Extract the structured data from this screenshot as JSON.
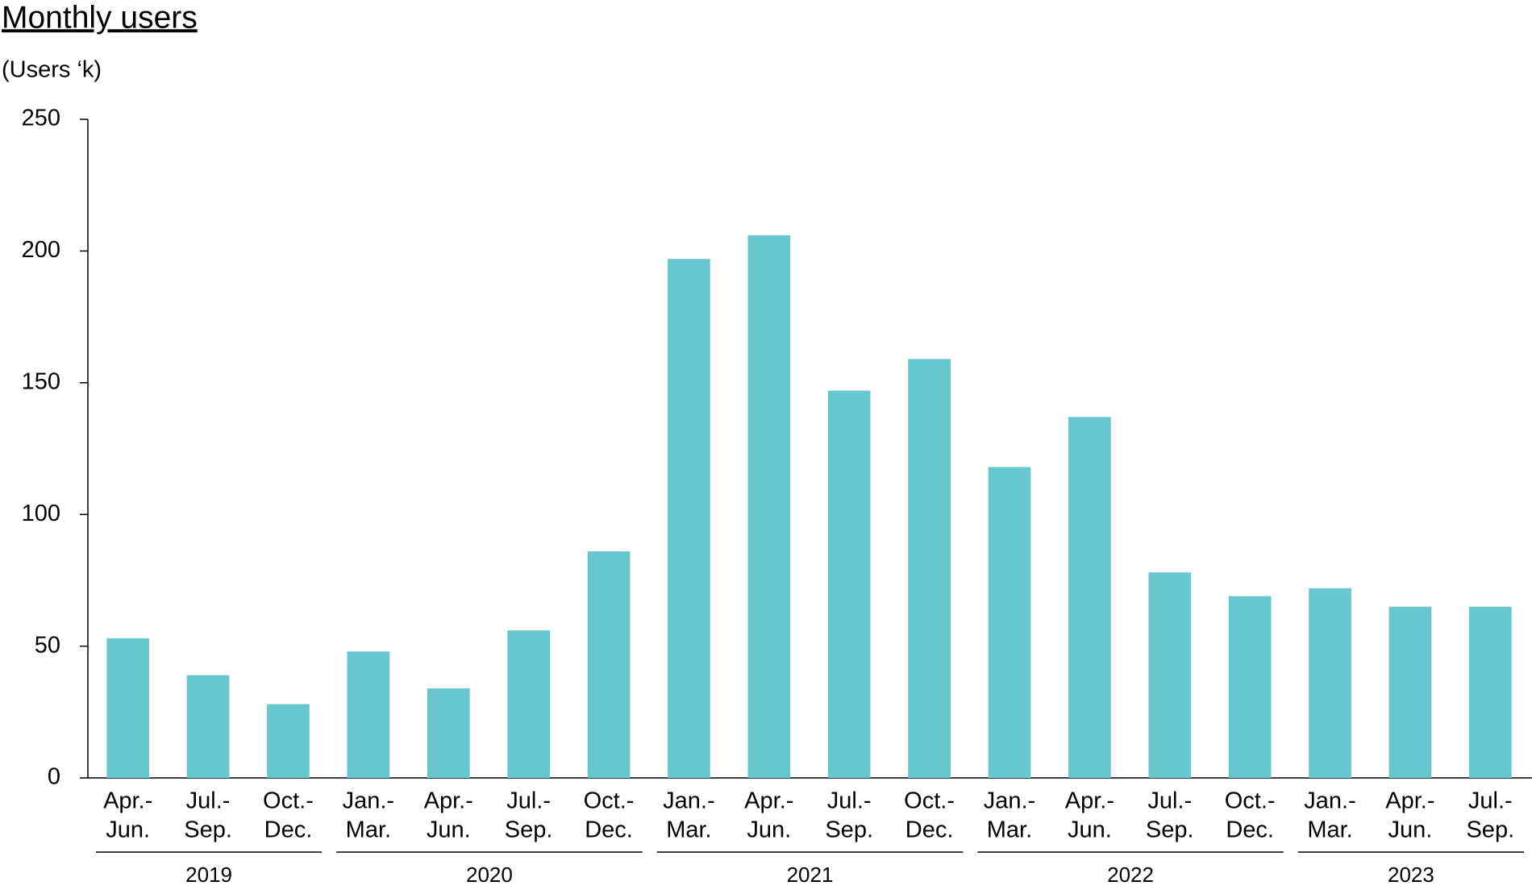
{
  "chart_data": {
    "type": "bar",
    "title": "Monthly users",
    "y_label": "(Users ‘k)",
    "categories": [
      {
        "period": [
          "Apr.-",
          "Jun."
        ],
        "year": "2019"
      },
      {
        "period": [
          "Jul.-",
          "Sep."
        ],
        "year": "2019"
      },
      {
        "period": [
          "Oct.-",
          "Dec."
        ],
        "year": "2019"
      },
      {
        "period": [
          "Jan.-",
          "Mar."
        ],
        "year": "2020"
      },
      {
        "period": [
          "Apr.-",
          "Jun."
        ],
        "year": "2020"
      },
      {
        "period": [
          "Jul.-",
          "Sep."
        ],
        "year": "2020"
      },
      {
        "period": [
          "Oct.-",
          "Dec."
        ],
        "year": "2020"
      },
      {
        "period": [
          "Jan.-",
          "Mar."
        ],
        "year": "2021"
      },
      {
        "period": [
          "Apr.-",
          "Jun."
        ],
        "year": "2021"
      },
      {
        "period": [
          "Jul.-",
          "Sep."
        ],
        "year": "2021"
      },
      {
        "period": [
          "Oct.-",
          "Dec."
        ],
        "year": "2021"
      },
      {
        "period": [
          "Jan.-",
          "Mar."
        ],
        "year": "2022"
      },
      {
        "period": [
          "Apr.-",
          "Jun."
        ],
        "year": "2022"
      },
      {
        "period": [
          "Jul.-",
          "Sep."
        ],
        "year": "2022"
      },
      {
        "period": [
          "Oct.-",
          "Dec."
        ],
        "year": "2022"
      },
      {
        "period": [
          "Jan.-",
          "Mar."
        ],
        "year": "2023"
      },
      {
        "period": [
          "Apr.-",
          "Jun."
        ],
        "year": "2023"
      },
      {
        "period": [
          "Jul.-",
          "Sep."
        ],
        "year": "2023"
      }
    ],
    "values": [
      53,
      39,
      28,
      48,
      34,
      56,
      86,
      197,
      206,
      147,
      159,
      118,
      137,
      78,
      69,
      72,
      65,
      65
    ],
    "color": "#67c7cf",
    "ylim": [
      0,
      250
    ],
    "yticks": [
      0,
      50,
      100,
      150,
      200,
      250
    ],
    "grid": false
  }
}
